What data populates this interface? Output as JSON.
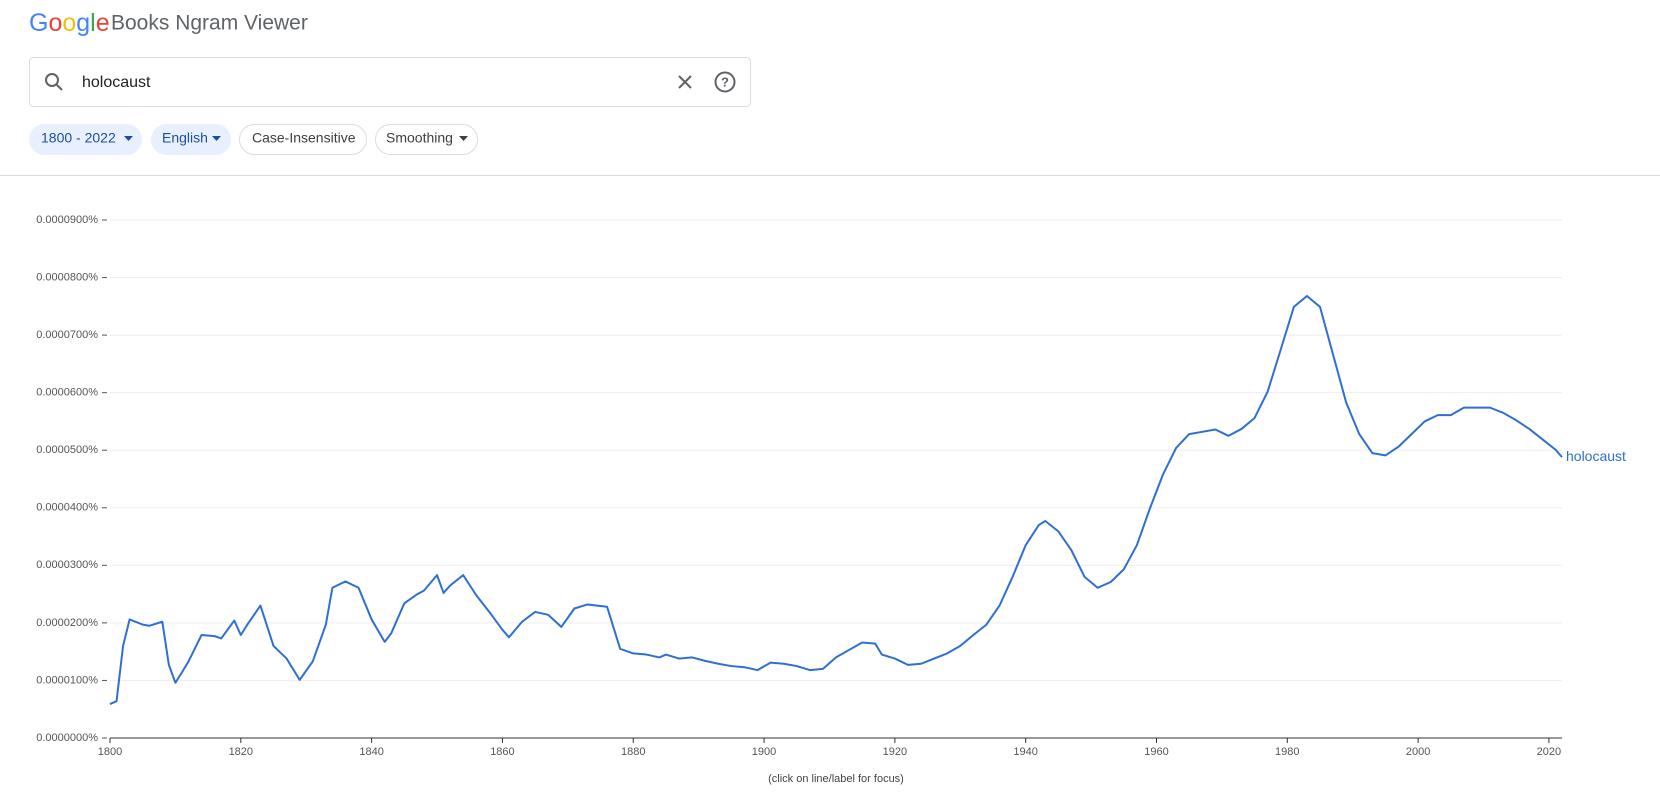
{
  "header": {
    "logo": "Google",
    "title": "Books Ngram Viewer"
  },
  "search": {
    "query": "holocaust"
  },
  "chips": [
    "1800 - 2022",
    "English",
    "Case-Insensitive",
    "Smoothing"
  ],
  "chart_data": {
    "type": "line",
    "x": [
      1800,
      1801,
      1802,
      1803,
      1805,
      1806,
      1808,
      1809,
      1810,
      1811,
      1812,
      1814,
      1816,
      1817,
      1819,
      1820,
      1821,
      1823,
      1825,
      1827,
      1829,
      1831,
      1833,
      1834,
      1836,
      1838,
      1840,
      1842,
      1843,
      1845,
      1847,
      1848,
      1850,
      1851,
      1852,
      1854,
      1856,
      1858,
      1860,
      1861,
      1863,
      1865,
      1867,
      1869,
      1871,
      1873,
      1876,
      1878,
      1880,
      1882,
      1884,
      1885,
      1887,
      1889,
      1891,
      1893,
      1895,
      1897,
      1899,
      1901,
      1903,
      1905,
      1907,
      1909,
      1911,
      1913,
      1915,
      1917,
      1918,
      1920,
      1922,
      1924,
      1926,
      1928,
      1930,
      1932,
      1934,
      1936,
      1938,
      1940,
      1942,
      1943,
      1945,
      1947,
      1949,
      1951,
      1953,
      1955,
      1957,
      1959,
      1961,
      1963,
      1965,
      1967,
      1969,
      1971,
      1973,
      1975,
      1977,
      1979,
      1981,
      1983,
      1985,
      1987,
      1989,
      1991,
      1993,
      1995,
      1997,
      1999,
      2001,
      2003,
      2005,
      2007,
      2009,
      2011,
      2013,
      2015,
      2017,
      2019,
      2021,
      2022
    ],
    "series": [
      {
        "name": "holocaust",
        "color": "#2f6fd0",
        "values": [
          5.9e-06,
          6.4e-06,
          1.6e-05,
          2.06e-05,
          1.97e-05,
          1.95e-05,
          2.02e-05,
          1.27e-05,
          9.6e-06,
          1.14e-05,
          1.33e-05,
          1.79e-05,
          1.77e-05,
          1.73e-05,
          2.04e-05,
          1.79e-05,
          1.97e-05,
          2.3e-05,
          1.6e-05,
          1.38e-05,
          1.01e-05,
          1.33e-05,
          1.97e-05,
          2.61e-05,
          2.72e-05,
          2.61e-05,
          2.06e-05,
          1.67e-05,
          1.82e-05,
          2.34e-05,
          2.5e-05,
          2.56e-05,
          2.83e-05,
          2.52e-05,
          2.65e-05,
          2.83e-05,
          2.48e-05,
          2.19e-05,
          1.88e-05,
          1.75e-05,
          2.02e-05,
          2.19e-05,
          2.14e-05,
          1.93e-05,
          2.25e-05,
          2.32e-05,
          2.28e-05,
          1.55e-05,
          1.47e-05,
          1.45e-05,
          1.4e-05,
          1.45e-05,
          1.38e-05,
          1.4e-05,
          1.34e-05,
          1.29e-05,
          1.25e-05,
          1.23e-05,
          1.18e-05,
          1.31e-05,
          1.29e-05,
          1.25e-05,
          1.18e-05,
          1.2e-05,
          1.4e-05,
          1.53e-05,
          1.66e-05,
          1.64e-05,
          1.45e-05,
          1.38e-05,
          1.27e-05,
          1.29e-05,
          1.38e-05,
          1.47e-05,
          1.6e-05,
          1.79e-05,
          1.97e-05,
          2.3e-05,
          2.8e-05,
          3.35e-05,
          3.7e-05,
          3.77e-05,
          3.59e-05,
          3.26e-05,
          2.8e-05,
          2.61e-05,
          2.71e-05,
          2.93e-05,
          3.35e-05,
          3.99e-05,
          4.58e-05,
          5.04e-05,
          5.28e-05,
          5.32e-05,
          5.36e-05,
          5.25e-05,
          5.37e-05,
          5.56e-05,
          6.02e-05,
          6.75e-05,
          7.49e-05,
          7.68e-05,
          7.49e-05,
          6.66e-05,
          5.83e-05,
          5.28e-05,
          4.95e-05,
          4.91e-05,
          5.06e-05,
          5.28e-05,
          5.5e-05,
          5.61e-05,
          5.61e-05,
          5.74e-05,
          5.74e-05,
          5.74e-05,
          5.65e-05,
          5.52e-05,
          5.37e-05,
          5.19e-05,
          5.01e-05,
          4.88e-05
        ]
      }
    ],
    "xlim": [
      1800,
      2022
    ],
    "xticks": [
      1800,
      1820,
      1840,
      1860,
      1880,
      1900,
      1920,
      1940,
      1960,
      1980,
      2000,
      2020
    ],
    "ylim": [
      0,
      9e-05
    ],
    "yticks": [
      {
        "value": 0,
        "label": "0.0000000%"
      },
      {
        "value": 1e-05,
        "label": "0.0000100%"
      },
      {
        "value": 2e-05,
        "label": "0.0000200%"
      },
      {
        "value": 3e-05,
        "label": "0.0000300%"
      },
      {
        "value": 4e-05,
        "label": "0.0000400%"
      },
      {
        "value": 5e-05,
        "label": "0.0000500%"
      },
      {
        "value": 6e-05,
        "label": "0.0000600%"
      },
      {
        "value": 7e-05,
        "label": "0.0000700%"
      },
      {
        "value": 8e-05,
        "label": "0.0000800%"
      },
      {
        "value": 9e-05,
        "label": "0.0000900%"
      }
    ],
    "grid": true,
    "footnote": "(click on line/label for focus)"
  }
}
